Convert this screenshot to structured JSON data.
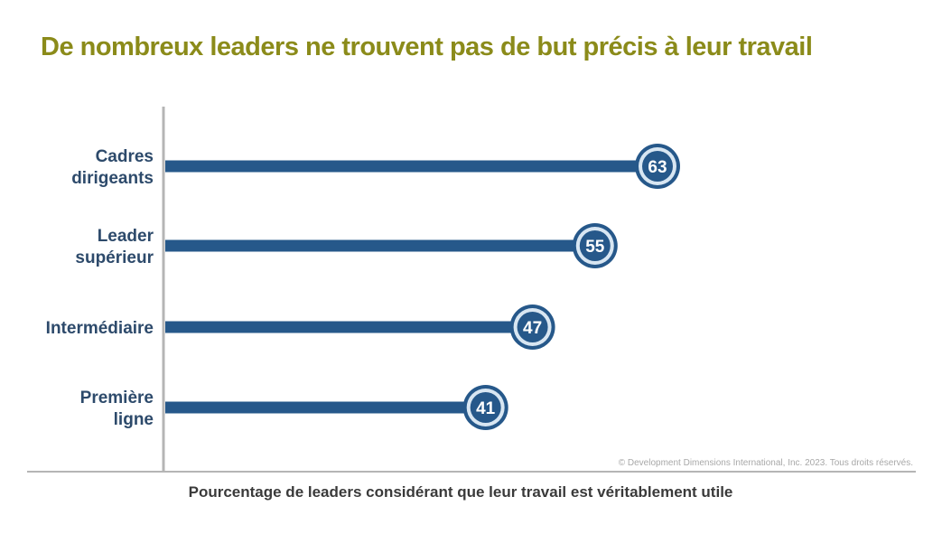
{
  "chart_data": {
    "type": "bar",
    "orientation": "horizontal",
    "title": "De nombreux leaders ne trouvent pas de but précis à leur travail",
    "xlabel": "Pourcentage de leaders considérant que leur travail est véritablement utile",
    "ylabel": "",
    "categories": [
      [
        "Cadres",
        "dirigeants"
      ],
      [
        "Leader",
        "supérieur"
      ],
      [
        "Intermédiaire"
      ],
      [
        "Première",
        "ligne"
      ]
    ],
    "values": [
      63,
      55,
      47,
      41
    ],
    "xlim": [
      0,
      100
    ],
    "grid": false,
    "legend": "none",
    "colors": {
      "bar": "#26588a",
      "marker_ring": "#d8e6f2",
      "title": "#8b8b1a",
      "axis": "#b5b5b5"
    }
  },
  "copyright": "© Development Dimensions International, Inc. 2023. Tous droits réservés."
}
